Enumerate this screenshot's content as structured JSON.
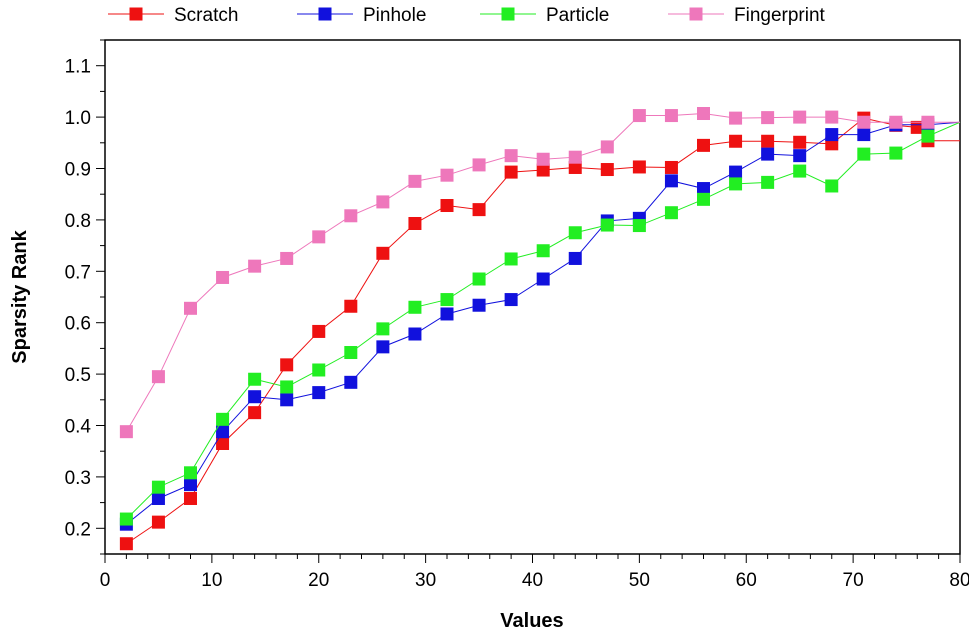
{
  "chart_data": {
    "type": "line",
    "xlabel": "Values",
    "ylabel": "Sparsity Rank",
    "xlim": [
      0,
      80
    ],
    "ylim": [
      0.15,
      1.15
    ],
    "x_ticks": [
      0,
      10,
      20,
      30,
      40,
      50,
      60,
      70,
      80
    ],
    "y_ticks": [
      0.2,
      0.3,
      0.4,
      0.5,
      0.6,
      0.7,
      0.8,
      0.9,
      1.0,
      1.1
    ],
    "x_tick_labels": [
      "0",
      "10",
      "20",
      "30",
      "40",
      "50",
      "60",
      "70",
      "80"
    ],
    "y_tick_labels": [
      "0.2",
      "0.3",
      "0.4",
      "0.5",
      "0.6",
      "0.7",
      "0.8",
      "0.9",
      "1.0",
      "1.1"
    ],
    "legend_position": "top",
    "series": [
      {
        "name": "Scratch",
        "color": "#ee1111",
        "points": [
          [
            2,
            0.17
          ],
          [
            5,
            0.212
          ],
          [
            8,
            0.258
          ],
          [
            11,
            0.365
          ],
          [
            14,
            0.425
          ],
          [
            17,
            0.518
          ],
          [
            20,
            0.583
          ],
          [
            23,
            0.632
          ],
          [
            26,
            0.735
          ],
          [
            29,
            0.793
          ],
          [
            32,
            0.828
          ],
          [
            35,
            0.82
          ],
          [
            38,
            0.893
          ],
          [
            41,
            0.897
          ],
          [
            44,
            0.902
          ],
          [
            47,
            0.898
          ],
          [
            50,
            0.903
          ],
          [
            53,
            0.902
          ],
          [
            56,
            0.945
          ],
          [
            59,
            0.953
          ],
          [
            62,
            0.953
          ],
          [
            65,
            0.951
          ],
          [
            68,
            0.948
          ],
          [
            71,
            0.998
          ],
          [
            74,
            0.984
          ],
          [
            76,
            0.98
          ],
          [
            77,
            0.954
          ],
          [
            80,
            0.954
          ]
        ]
      },
      {
        "name": "Pinhole",
        "color": "#1111dd",
        "points": [
          [
            2,
            0.208
          ],
          [
            5,
            0.258
          ],
          [
            8,
            0.285
          ],
          [
            11,
            0.388
          ],
          [
            14,
            0.456
          ],
          [
            17,
            0.45
          ],
          [
            20,
            0.464
          ],
          [
            23,
            0.484
          ],
          [
            26,
            0.553
          ],
          [
            29,
            0.578
          ],
          [
            32,
            0.617
          ],
          [
            35,
            0.634
          ],
          [
            38,
            0.645
          ],
          [
            41,
            0.685
          ],
          [
            44,
            0.725
          ],
          [
            47,
            0.798
          ],
          [
            50,
            0.803
          ],
          [
            53,
            0.876
          ],
          [
            56,
            0.861
          ],
          [
            59,
            0.893
          ],
          [
            62,
            0.928
          ],
          [
            65,
            0.925
          ],
          [
            68,
            0.966
          ],
          [
            71,
            0.966
          ],
          [
            74,
            0.985
          ],
          [
            77,
            0.985
          ],
          [
            80,
            0.99
          ]
        ]
      },
      {
        "name": "Particle",
        "color": "#22ee22",
        "points": [
          [
            2,
            0.218
          ],
          [
            5,
            0.28
          ],
          [
            8,
            0.308
          ],
          [
            11,
            0.412
          ],
          [
            14,
            0.49
          ],
          [
            17,
            0.475
          ],
          [
            20,
            0.508
          ],
          [
            23,
            0.542
          ],
          [
            26,
            0.588
          ],
          [
            29,
            0.63
          ],
          [
            32,
            0.645
          ],
          [
            35,
            0.685
          ],
          [
            38,
            0.724
          ],
          [
            41,
            0.74
          ],
          [
            44,
            0.775
          ],
          [
            47,
            0.79
          ],
          [
            50,
            0.789
          ],
          [
            53,
            0.814
          ],
          [
            56,
            0.84
          ],
          [
            59,
            0.87
          ],
          [
            62,
            0.873
          ],
          [
            65,
            0.895
          ],
          [
            68,
            0.866
          ],
          [
            71,
            0.928
          ],
          [
            74,
            0.93
          ],
          [
            77,
            0.963
          ],
          [
            80,
            0.99
          ]
        ]
      },
      {
        "name": "Fingerprint",
        "color": "#ee77bb",
        "points": [
          [
            2,
            0.388
          ],
          [
            5,
            0.495
          ],
          [
            8,
            0.628
          ],
          [
            11,
            0.688
          ],
          [
            14,
            0.71
          ],
          [
            17,
            0.725
          ],
          [
            20,
            0.767
          ],
          [
            23,
            0.808
          ],
          [
            26,
            0.835
          ],
          [
            29,
            0.875
          ],
          [
            32,
            0.887
          ],
          [
            35,
            0.907
          ],
          [
            38,
            0.925
          ],
          [
            41,
            0.918
          ],
          [
            44,
            0.922
          ],
          [
            47,
            0.942
          ],
          [
            50,
            1.003
          ],
          [
            53,
            1.003
          ],
          [
            56,
            1.007
          ],
          [
            59,
            0.998
          ],
          [
            62,
            0.999
          ],
          [
            65,
            1.0
          ],
          [
            68,
            1.0
          ],
          [
            71,
            0.99
          ],
          [
            74,
            0.99
          ],
          [
            77,
            0.99
          ],
          [
            80,
            0.99
          ]
        ]
      }
    ]
  }
}
